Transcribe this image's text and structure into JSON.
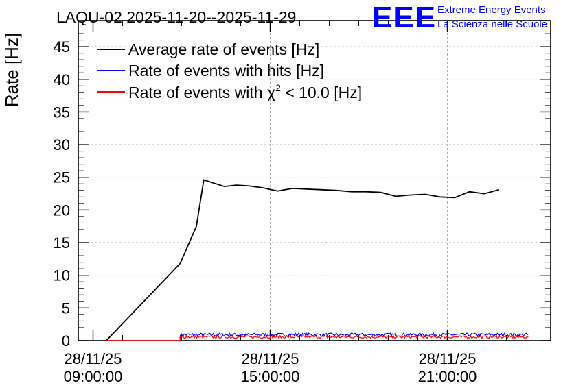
{
  "chart_data": {
    "type": "line",
    "title": "LAQU-02 2025-11-20--2025-11-29",
    "ylabel": "Rate [Hz]",
    "xlabel": "",
    "ylim": [
      0,
      49
    ],
    "xlim_hours": [
      8.5,
      24.5
    ],
    "yticks": [
      0,
      5,
      10,
      15,
      20,
      25,
      30,
      35,
      40,
      45
    ],
    "xticks": [
      {
        "hour": 9,
        "date": "28/11/25",
        "time": "09:00:00"
      },
      {
        "hour": 15,
        "date": "28/11/25",
        "time": "15:00:00"
      },
      {
        "hour": 21,
        "date": "28/11/25",
        "time": "21:00:00"
      }
    ],
    "grid": true,
    "legend_position": "top-left",
    "series": [
      {
        "name": "Average rate of events [Hz]",
        "color": "#000000",
        "x_hours": [
          9.45,
          11.95,
          12.5,
          12.75,
          13.1,
          13.45,
          13.85,
          14.25,
          14.75,
          15.25,
          15.75,
          16.25,
          16.75,
          17.25,
          17.75,
          18.25,
          18.75,
          19.25,
          19.75,
          20.25,
          20.75,
          21.25,
          21.75,
          22.25,
          22.75,
          23.25,
          23.75
        ],
        "y": [
          0,
          11.8,
          17.5,
          24.6,
          24.1,
          23.6,
          23.8,
          23.7,
          23.4,
          22.9,
          23.3,
          23.2,
          23.1,
          23.0,
          22.8,
          22.8,
          22.7,
          22.1,
          22.3,
          22.4,
          22.0,
          21.9,
          22.8,
          22.5,
          23.1,
          null,
          null
        ]
      },
      {
        "name": "Rate of events with hits [Hz]",
        "color": "#0000ff",
        "x_start_hour": 11.95,
        "x_end_hour": 23.75,
        "mean": 0.9,
        "noise": 0.25
      },
      {
        "name": "Rate of events with χ² < 10.0 [Hz]",
        "legend_prefix": "Rate of events with ",
        "legend_chi": "χ",
        "legend_sup": "2",
        "legend_suffix": " < 10.0 [Hz]",
        "color": "#ff0000",
        "x_start_hour": 11.95,
        "x_end_hour": 23.75,
        "mean": 0.55,
        "noise": 0.2
      }
    ]
  },
  "logo": {
    "mark": "EEE",
    "line1": "Extreme Energy Events",
    "line2": "La Scienza nelle Scuole",
    "color": "#0000ff"
  }
}
